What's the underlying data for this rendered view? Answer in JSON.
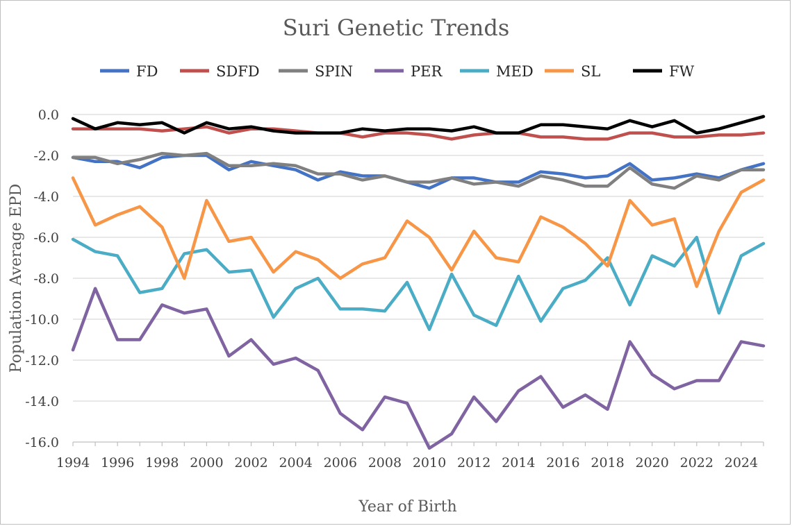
{
  "chart_data": {
    "type": "line",
    "title": "Suri Genetic Trends",
    "xlabel": "Year of Birth",
    "ylabel": "Population Average EPD",
    "xlim": [
      1994,
      2025
    ],
    "ylim": [
      -16,
      0
    ],
    "y_ticks": [
      0,
      -2,
      -4,
      -6,
      -8,
      -10,
      -12,
      -14,
      -16
    ],
    "y_tick_labels": [
      "0.0",
      "-2.0",
      "-4.0",
      "-6.0",
      "-8.0",
      "-10.0",
      "-12.0",
      "-14.0",
      "-16.0"
    ],
    "x_tick_labels": [
      "1994",
      "1996",
      "1998",
      "2000",
      "2002",
      "2004",
      "2006",
      "2008",
      "2010",
      "2012",
      "2014",
      "2016",
      "2018",
      "2020",
      "2022",
      "2024"
    ],
    "x": [
      1994,
      1995,
      1996,
      1997,
      1998,
      1999,
      2000,
      2001,
      2002,
      2003,
      2004,
      2005,
      2006,
      2007,
      2008,
      2009,
      2010,
      2011,
      2012,
      2013,
      2014,
      2015,
      2016,
      2017,
      2018,
      2019,
      2020,
      2021,
      2022,
      2023,
      2024,
      2025
    ],
    "grid": true,
    "legend_position": "top",
    "series": [
      {
        "name": "FD",
        "color": "#4472c4",
        "values": [
          -2.1,
          -2.3,
          -2.3,
          -2.6,
          -2.1,
          -2.0,
          -2.0,
          -2.7,
          -2.3,
          -2.5,
          -2.7,
          -3.2,
          -2.8,
          -3.0,
          -3.0,
          -3.3,
          -3.6,
          -3.1,
          -3.1,
          -3.3,
          -3.3,
          -2.8,
          -2.9,
          -3.1,
          -3.0,
          -2.4,
          -3.2,
          -3.1,
          -2.9,
          -3.1,
          -2.7,
          -2.4
        ]
      },
      {
        "name": "SDFD",
        "color": "#c0504d",
        "values": [
          -0.7,
          -0.7,
          -0.7,
          -0.7,
          -0.8,
          -0.7,
          -0.6,
          -0.9,
          -0.7,
          -0.7,
          -0.8,
          -0.9,
          -0.9,
          -1.1,
          -0.9,
          -0.9,
          -1.0,
          -1.2,
          -1.0,
          -0.9,
          -0.9,
          -1.1,
          -1.1,
          -1.2,
          -1.2,
          -0.9,
          -0.9,
          -1.1,
          -1.1,
          -1.0,
          -1.0,
          -0.9
        ]
      },
      {
        "name": "SPIN",
        "color": "#808080",
        "values": [
          -2.1,
          -2.1,
          -2.4,
          -2.2,
          -1.9,
          -2.0,
          -1.9,
          -2.5,
          -2.5,
          -2.4,
          -2.5,
          -2.9,
          -2.9,
          -3.2,
          -3.0,
          -3.3,
          -3.3,
          -3.1,
          -3.4,
          -3.3,
          -3.5,
          -3.0,
          -3.2,
          -3.5,
          -3.5,
          -2.6,
          -3.4,
          -3.6,
          -3.0,
          -3.2,
          -2.7,
          -2.7
        ]
      },
      {
        "name": "PER",
        "color": "#8064a2",
        "values": [
          -11.5,
          -8.5,
          -11.0,
          -11.0,
          -9.3,
          -9.7,
          -9.5,
          -11.8,
          -11.0,
          -12.2,
          -11.9,
          -12.5,
          -14.6,
          -15.4,
          -13.8,
          -14.1,
          -16.3,
          -15.6,
          -13.8,
          -15.0,
          -13.5,
          -12.8,
          -14.3,
          -13.7,
          -14.4,
          -11.1,
          -12.7,
          -13.4,
          -13.0,
          -13.0,
          -11.1,
          -11.3
        ]
      },
      {
        "name": "MED",
        "color": "#4bacc6",
        "values": [
          -6.1,
          -6.7,
          -6.9,
          -8.7,
          -8.5,
          -6.8,
          -6.6,
          -7.7,
          -7.6,
          -9.9,
          -8.5,
          -8.0,
          -9.5,
          -9.5,
          -9.6,
          -8.2,
          -10.5,
          -7.8,
          -9.8,
          -10.3,
          -7.9,
          -10.1,
          -8.5,
          -8.1,
          -7.0,
          -9.3,
          -6.9,
          -7.4,
          -6.0,
          -9.7,
          -6.9,
          -6.3
        ]
      },
      {
        "name": "SL",
        "color": "#f79646",
        "values": [
          -3.1,
          -5.4,
          -4.9,
          -4.5,
          -5.5,
          -8.0,
          -4.2,
          -6.2,
          -6.0,
          -7.7,
          -6.7,
          -7.1,
          -8.0,
          -7.3,
          -7.0,
          -5.2,
          -6.0,
          -7.6,
          -5.7,
          -7.0,
          -7.2,
          -5.0,
          -5.5,
          -6.3,
          -7.4,
          -4.2,
          -5.4,
          -5.1,
          -8.4,
          -5.7,
          -3.8,
          -3.2
        ]
      },
      {
        "name": "FW",
        "color": "#000000",
        "values": [
          -0.2,
          -0.7,
          -0.4,
          -0.5,
          -0.4,
          -0.9,
          -0.4,
          -0.7,
          -0.6,
          -0.8,
          -0.9,
          -0.9,
          -0.9,
          -0.7,
          -0.8,
          -0.7,
          -0.7,
          -0.8,
          -0.6,
          -0.9,
          -0.9,
          -0.5,
          -0.5,
          -0.6,
          -0.7,
          -0.3,
          -0.6,
          -0.3,
          -0.9,
          -0.7,
          -0.4,
          -0.1
        ]
      }
    ]
  }
}
